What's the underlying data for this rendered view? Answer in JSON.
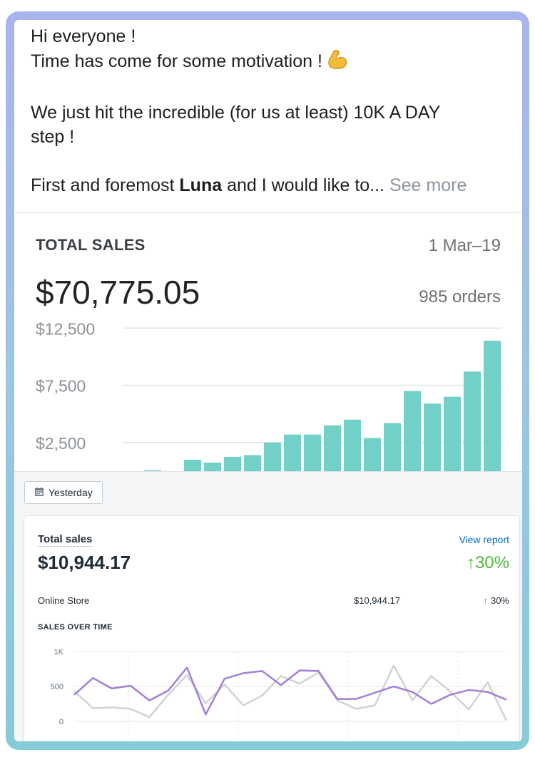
{
  "post": {
    "line1": "Hi everyone !",
    "line2": "Time has come for some motivation !",
    "line3": "We just hit the incredible (for us at least) 10K A DAY",
    "line4": "step !",
    "line5_pre": "First and foremost ",
    "line5_bold": "Luna",
    "line5_post": " and I would like to...",
    "see_more": " See more",
    "emoji_icon": "flexed-biceps-icon"
  },
  "total_sales_card": {
    "title": "TOTAL SALES",
    "date_range": "1 Mar–19",
    "amount": "$70,775.05",
    "orders": "985 orders"
  },
  "analytics": {
    "date_button": "Yesterday",
    "total_sales_label": "Total sales",
    "view_report": "View report",
    "amount": "$10,944.17",
    "change": "↑30%",
    "channel": {
      "name": "Online Store",
      "amount": "$10,944.17",
      "change_arrow": "↑",
      "change": "30%"
    },
    "sales_over_time_label": "SALES OVER TIME"
  },
  "chart_data": [
    {
      "type": "bar",
      "y_ticks": [
        "$12,500",
        "$7,500",
        "$2,500"
      ],
      "y_tick_values": [
        12500,
        7500,
        2500
      ],
      "ylim": [
        0,
        13200
      ],
      "values": [
        0,
        80,
        0,
        1000,
        750,
        1250,
        1400,
        2500,
        3200,
        3200,
        4000,
        4500,
        2900,
        4200,
        7000,
        5900,
        6500,
        8700,
        11400
      ],
      "color": "#72d0c7",
      "grid": true
    },
    {
      "type": "line",
      "y_ticks": [
        "1K",
        "500",
        "0"
      ],
      "y_tick_values": [
        1000,
        500,
        0
      ],
      "ylim": [
        0,
        1000
      ],
      "series": [
        {
          "color": "#a27fd8",
          "values": [
            380,
            620,
            470,
            510,
            300,
            440,
            770,
            100,
            610,
            690,
            720,
            520,
            730,
            720,
            320,
            320,
            410,
            500,
            420,
            250,
            380,
            450,
            420,
            310
          ]
        },
        {
          "color": "#cfd2d6",
          "values": [
            430,
            190,
            200,
            180,
            60,
            380,
            660,
            260,
            530,
            230,
            370,
            650,
            540,
            700,
            300,
            180,
            230,
            800,
            300,
            650,
            430,
            170,
            560,
            10
          ]
        }
      ]
    }
  ]
}
